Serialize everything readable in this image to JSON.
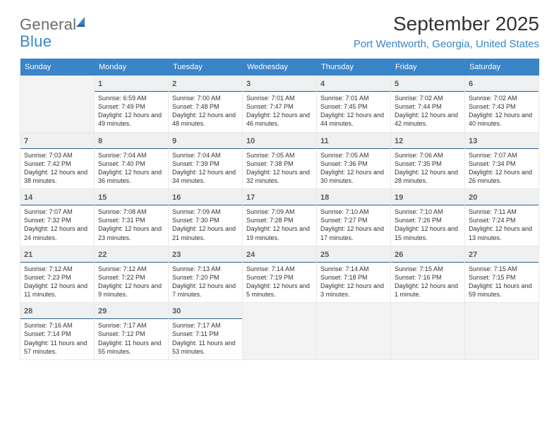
{
  "brand": {
    "word1": "General",
    "word2": "Blue"
  },
  "header": {
    "month_year": "September 2025",
    "location": "Port Wentworth, Georgia, United States"
  },
  "weekdays": [
    "Sunday",
    "Monday",
    "Tuesday",
    "Wednesday",
    "Thursday",
    "Friday",
    "Saturday"
  ],
  "colors": {
    "accent": "#3a84c8",
    "header_text": "#ffffff",
    "daynum_bg": "#eef0f2",
    "daynum_underline": "#2e5f8a",
    "cell_border": "#e9e9e9",
    "blank_bg": "#f3f3f3",
    "text": "#333333",
    "logo_gray": "#6b6b6b"
  },
  "layout": {
    "first_weekday_index": 1,
    "days_in_month": 30,
    "columns": 7,
    "rows": 5
  },
  "days": [
    {
      "n": 1,
      "sunrise": "6:59 AM",
      "sunset": "7:49 PM",
      "daylight": "12 hours and 49 minutes."
    },
    {
      "n": 2,
      "sunrise": "7:00 AM",
      "sunset": "7:48 PM",
      "daylight": "12 hours and 48 minutes."
    },
    {
      "n": 3,
      "sunrise": "7:01 AM",
      "sunset": "7:47 PM",
      "daylight": "12 hours and 46 minutes."
    },
    {
      "n": 4,
      "sunrise": "7:01 AM",
      "sunset": "7:45 PM",
      "daylight": "12 hours and 44 minutes."
    },
    {
      "n": 5,
      "sunrise": "7:02 AM",
      "sunset": "7:44 PM",
      "daylight": "12 hours and 42 minutes."
    },
    {
      "n": 6,
      "sunrise": "7:02 AM",
      "sunset": "7:43 PM",
      "daylight": "12 hours and 40 minutes."
    },
    {
      "n": 7,
      "sunrise": "7:03 AM",
      "sunset": "7:42 PM",
      "daylight": "12 hours and 38 minutes."
    },
    {
      "n": 8,
      "sunrise": "7:04 AM",
      "sunset": "7:40 PM",
      "daylight": "12 hours and 36 minutes."
    },
    {
      "n": 9,
      "sunrise": "7:04 AM",
      "sunset": "7:39 PM",
      "daylight": "12 hours and 34 minutes."
    },
    {
      "n": 10,
      "sunrise": "7:05 AM",
      "sunset": "7:38 PM",
      "daylight": "12 hours and 32 minutes."
    },
    {
      "n": 11,
      "sunrise": "7:05 AM",
      "sunset": "7:36 PM",
      "daylight": "12 hours and 30 minutes."
    },
    {
      "n": 12,
      "sunrise": "7:06 AM",
      "sunset": "7:35 PM",
      "daylight": "12 hours and 28 minutes."
    },
    {
      "n": 13,
      "sunrise": "7:07 AM",
      "sunset": "7:34 PM",
      "daylight": "12 hours and 26 minutes."
    },
    {
      "n": 14,
      "sunrise": "7:07 AM",
      "sunset": "7:32 PM",
      "daylight": "12 hours and 24 minutes."
    },
    {
      "n": 15,
      "sunrise": "7:08 AM",
      "sunset": "7:31 PM",
      "daylight": "12 hours and 23 minutes."
    },
    {
      "n": 16,
      "sunrise": "7:09 AM",
      "sunset": "7:30 PM",
      "daylight": "12 hours and 21 minutes."
    },
    {
      "n": 17,
      "sunrise": "7:09 AM",
      "sunset": "7:28 PM",
      "daylight": "12 hours and 19 minutes."
    },
    {
      "n": 18,
      "sunrise": "7:10 AM",
      "sunset": "7:27 PM",
      "daylight": "12 hours and 17 minutes."
    },
    {
      "n": 19,
      "sunrise": "7:10 AM",
      "sunset": "7:26 PM",
      "daylight": "12 hours and 15 minutes."
    },
    {
      "n": 20,
      "sunrise": "7:11 AM",
      "sunset": "7:24 PM",
      "daylight": "12 hours and 13 minutes."
    },
    {
      "n": 21,
      "sunrise": "7:12 AM",
      "sunset": "7:23 PM",
      "daylight": "12 hours and 11 minutes."
    },
    {
      "n": 22,
      "sunrise": "7:12 AM",
      "sunset": "7:22 PM",
      "daylight": "12 hours and 9 minutes."
    },
    {
      "n": 23,
      "sunrise": "7:13 AM",
      "sunset": "7:20 PM",
      "daylight": "12 hours and 7 minutes."
    },
    {
      "n": 24,
      "sunrise": "7:14 AM",
      "sunset": "7:19 PM",
      "daylight": "12 hours and 5 minutes."
    },
    {
      "n": 25,
      "sunrise": "7:14 AM",
      "sunset": "7:18 PM",
      "daylight": "12 hours and 3 minutes."
    },
    {
      "n": 26,
      "sunrise": "7:15 AM",
      "sunset": "7:16 PM",
      "daylight": "12 hours and 1 minute."
    },
    {
      "n": 27,
      "sunrise": "7:15 AM",
      "sunset": "7:15 PM",
      "daylight": "11 hours and 59 minutes."
    },
    {
      "n": 28,
      "sunrise": "7:16 AM",
      "sunset": "7:14 PM",
      "daylight": "11 hours and 57 minutes."
    },
    {
      "n": 29,
      "sunrise": "7:17 AM",
      "sunset": "7:12 PM",
      "daylight": "11 hours and 55 minutes."
    },
    {
      "n": 30,
      "sunrise": "7:17 AM",
      "sunset": "7:11 PM",
      "daylight": "11 hours and 53 minutes."
    }
  ],
  "labels": {
    "sunrise": "Sunrise:",
    "sunset": "Sunset:",
    "daylight": "Daylight:"
  }
}
